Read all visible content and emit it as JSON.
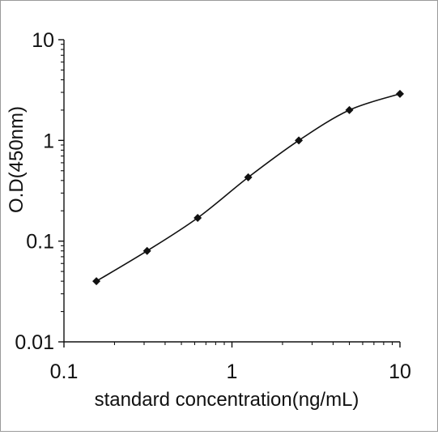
{
  "chart_data": {
    "type": "line",
    "xscale": "log",
    "yscale": "log",
    "xlim": [
      0.1,
      10
    ],
    "ylim": [
      0.01,
      10
    ],
    "xticks": [
      {
        "value": 0.1,
        "label": "0.1"
      },
      {
        "value": 1,
        "label": "1"
      },
      {
        "value": 10,
        "label": "10"
      }
    ],
    "yticks": [
      {
        "value": 0.01,
        "label": "0.01"
      },
      {
        "value": 0.1,
        "label": "0.1"
      },
      {
        "value": 1,
        "label": "1"
      },
      {
        "value": 10,
        "label": "10"
      }
    ],
    "xlabel": "standard concentration(ng/mL)",
    "ylabel": "O.D(450nm)",
    "grid": false,
    "legend": "none",
    "marker": "diamond",
    "line_color": "#111111",
    "series": [
      {
        "x": [
          0.156,
          0.3125,
          0.625,
          1.25,
          2.5,
          5,
          10
        ],
        "y": [
          0.04,
          0.08,
          0.17,
          0.43,
          1.0,
          2.0,
          2.9
        ]
      }
    ]
  }
}
